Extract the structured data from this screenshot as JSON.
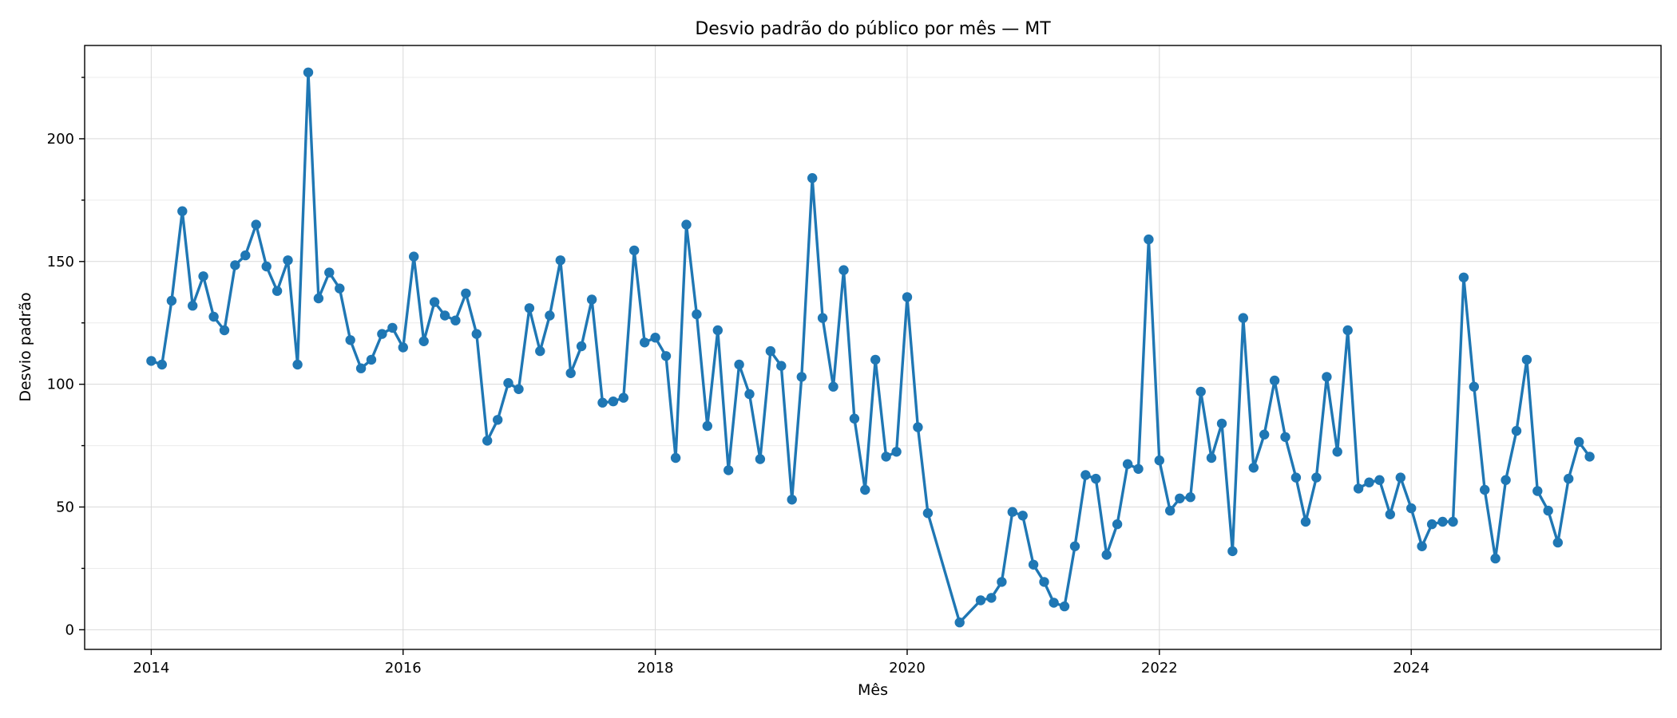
{
  "chart_data": {
    "type": "line",
    "title": "Desvio padrão do público por mês — MT",
    "xlabel": "Mês",
    "ylabel": "Desvio padrão",
    "xlim": [
      "2013-06-22",
      "2025-12-25"
    ],
    "ylim": [
      -8,
      238
    ],
    "x_ticks": [
      "2014",
      "2016",
      "2018",
      "2020",
      "2022",
      "2024"
    ],
    "y_ticks": [
      0,
      50,
      100,
      150,
      200
    ],
    "grid": true,
    "series": [
      {
        "color": "#1f77b4",
        "x": [
          "2014-01",
          "2014-02",
          "2014-03",
          "2014-04",
          "2014-05",
          "2014-06",
          "2014-07",
          "2014-08",
          "2014-09",
          "2014-10",
          "2014-11",
          "2014-12",
          "2015-01",
          "2015-02",
          "2015-03",
          "2015-04",
          "2015-05",
          "2015-06",
          "2015-07",
          "2015-08",
          "2015-09",
          "2015-10",
          "2015-11",
          "2015-12",
          "2016-01",
          "2016-02",
          "2016-03",
          "2016-04",
          "2016-05",
          "2016-06",
          "2016-07",
          "2016-08",
          "2016-09",
          "2016-10",
          "2016-11",
          "2016-12",
          "2017-01",
          "2017-02",
          "2017-03",
          "2017-04",
          "2017-05",
          "2017-06",
          "2017-07",
          "2017-08",
          "2017-09",
          "2017-10",
          "2017-11",
          "2017-12",
          "2018-01",
          "2018-02",
          "2018-03",
          "2018-04",
          "2018-05",
          "2018-06",
          "2018-07",
          "2018-08",
          "2018-09",
          "2018-10",
          "2018-11",
          "2018-12",
          "2019-01",
          "2019-02",
          "2019-03",
          "2019-04",
          "2019-05",
          "2019-06",
          "2019-07",
          "2019-08",
          "2019-09",
          "2019-10",
          "2019-11",
          "2019-12",
          "2020-01",
          "2020-02",
          "2020-03",
          "2020-06",
          "2020-08",
          "2020-09",
          "2020-10",
          "2020-11",
          "2020-12",
          "2021-01",
          "2021-02",
          "2021-03",
          "2021-04",
          "2021-05",
          "2021-06",
          "2021-07",
          "2021-08",
          "2021-09",
          "2021-10",
          "2021-11",
          "2021-12",
          "2022-01",
          "2022-02",
          "2022-03",
          "2022-04",
          "2022-05",
          "2022-06",
          "2022-07",
          "2022-08",
          "2022-09",
          "2022-10",
          "2022-11",
          "2022-12",
          "2023-01",
          "2023-02",
          "2023-03",
          "2023-04",
          "2023-05",
          "2023-06",
          "2023-07",
          "2023-08",
          "2023-09",
          "2023-10",
          "2023-11",
          "2023-12",
          "2024-01",
          "2024-02",
          "2024-03",
          "2024-04",
          "2024-05",
          "2024-06",
          "2024-07",
          "2024-08",
          "2024-09",
          "2024-10",
          "2024-11",
          "2024-12",
          "2025-01",
          "2025-02",
          "2025-03",
          "2025-04",
          "2025-05",
          "2025-06"
        ],
        "y": [
          109.5,
          108,
          134,
          170.5,
          132,
          144,
          127.5,
          122,
          148.5,
          152.5,
          165,
          148,
          138,
          150.5,
          108,
          227,
          135,
          145.5,
          139,
          118,
          106.5,
          110,
          120.5,
          123,
          115,
          152,
          117.5,
          133.5,
          128,
          126,
          137,
          120.5,
          77,
          85.5,
          100.5,
          98,
          131,
          113.5,
          128,
          150.5,
          104.5,
          115.5,
          134.5,
          92.5,
          93,
          94.5,
          154.5,
          117,
          119,
          111.5,
          70,
          165,
          128.5,
          83,
          122,
          65,
          108,
          96,
          69.5,
          113.5,
          107.5,
          53,
          103,
          184,
          127,
          99,
          146.5,
          86,
          57,
          110,
          70.5,
          72.5,
          135.5,
          82.5,
          47.5,
          3,
          12,
          13,
          19.5,
          48,
          46.5,
          26.5,
          19.5,
          11,
          9.5,
          34,
          63,
          61.5,
          30.5,
          43,
          67.5,
          65.5,
          159,
          69,
          48.5,
          53.5,
          54,
          97,
          70,
          84,
          32,
          127,
          66,
          79.5,
          101.5,
          78.5,
          62,
          44,
          62,
          103,
          72.5,
          122,
          57.5,
          60,
          61,
          47,
          62,
          49.5,
          34,
          43,
          44,
          44,
          143.5,
          99,
          57,
          29,
          61,
          81,
          110,
          56.5,
          48.5,
          35.5,
          61.5,
          76.5,
          70.5
        ]
      }
    ]
  }
}
